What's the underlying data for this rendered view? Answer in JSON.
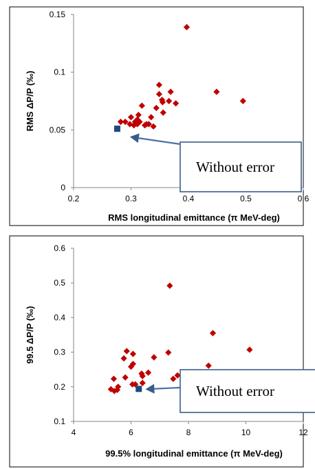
{
  "chart_data": [
    {
      "type": "scatter",
      "xlabel": "RMS longitudinal emittance (π MeV-deg)",
      "ylabel": "RMS ΔP/P  (‰)",
      "xlim": [
        0.2,
        0.6
      ],
      "ylim": [
        0,
        0.15
      ],
      "xticks": [
        "0.2",
        "0.3",
        "0.4",
        "0.5",
        "0.6"
      ],
      "yticks": [
        "0",
        "0.05",
        "0.1",
        "0.15"
      ],
      "grid": false,
      "series": [
        {
          "marker": "diamond",
          "color": "#c00000",
          "points": [
            [
              0.397,
              0.139
            ],
            [
              0.449,
              0.083
            ],
            [
              0.495,
              0.075
            ],
            [
              0.349,
              0.089
            ],
            [
              0.369,
              0.083
            ],
            [
              0.349,
              0.081
            ],
            [
              0.354,
              0.076
            ],
            [
              0.355,
              0.074
            ],
            [
              0.366,
              0.075
            ],
            [
              0.378,
              0.073
            ],
            [
              0.319,
              0.071
            ],
            [
              0.344,
              0.069
            ],
            [
              0.356,
              0.065
            ],
            [
              0.335,
              0.061
            ],
            [
              0.313,
              0.063
            ],
            [
              0.3,
              0.061
            ],
            [
              0.311,
              0.059
            ],
            [
              0.315,
              0.057
            ],
            [
              0.307,
              0.057
            ],
            [
              0.282,
              0.057
            ],
            [
              0.29,
              0.057
            ],
            [
              0.298,
              0.055
            ],
            [
              0.305,
              0.054
            ],
            [
              0.311,
              0.055
            ],
            [
              0.324,
              0.054
            ],
            [
              0.331,
              0.055
            ],
            [
              0.339,
              0.053
            ],
            [
              0.327,
              0.055
            ]
          ]
        },
        {
          "marker": "square",
          "color": "#1f497d",
          "points": [
            [
              0.276,
              0.051
            ]
          ]
        }
      ],
      "annotation": {
        "text": "Without error",
        "target": [
          0.298,
          0.044
        ]
      }
    },
    {
      "type": "scatter",
      "xlabel": "99.5% longitudinal emittance (π MeV-deg)",
      "ylabel": "99.5 ΔP/P  (‰)",
      "xlim": [
        4,
        12
      ],
      "ylim": [
        0.1,
        0.6
      ],
      "xticks": [
        "4",
        "6",
        "8",
        "10",
        "12"
      ],
      "yticks": [
        "0.1",
        "0.2",
        "0.3",
        "0.4",
        "0.5",
        "0.6"
      ],
      "grid": false,
      "series": [
        {
          "marker": "diamond",
          "color": "#c00000",
          "points": [
            [
              7.35,
              0.492
            ],
            [
              8.85,
              0.355
            ],
            [
              10.13,
              0.307
            ],
            [
              5.85,
              0.303
            ],
            [
              7.3,
              0.299
            ],
            [
              6.07,
              0.295
            ],
            [
              5.75,
              0.282
            ],
            [
              6.8,
              0.285
            ],
            [
              8.7,
              0.261
            ],
            [
              6.07,
              0.266
            ],
            [
              6.0,
              0.258
            ],
            [
              6.6,
              0.241
            ],
            [
              6.37,
              0.238
            ],
            [
              6.4,
              0.231
            ],
            [
              5.8,
              0.227
            ],
            [
              7.62,
              0.233
            ],
            [
              7.47,
              0.223
            ],
            [
              5.4,
              0.223
            ],
            [
              6.05,
              0.207
            ],
            [
              6.15,
              0.207
            ],
            [
              6.4,
              0.211
            ],
            [
              5.55,
              0.2
            ],
            [
              5.3,
              0.193
            ],
            [
              5.42,
              0.188
            ],
            [
              5.52,
              0.191
            ]
          ]
        },
        {
          "marker": "square",
          "color": "#1f497d",
          "points": [
            [
              6.27,
              0.194
            ]
          ]
        }
      ],
      "annotation": {
        "text": "Without error",
        "target": [
          6.5,
          0.193
        ]
      }
    }
  ]
}
